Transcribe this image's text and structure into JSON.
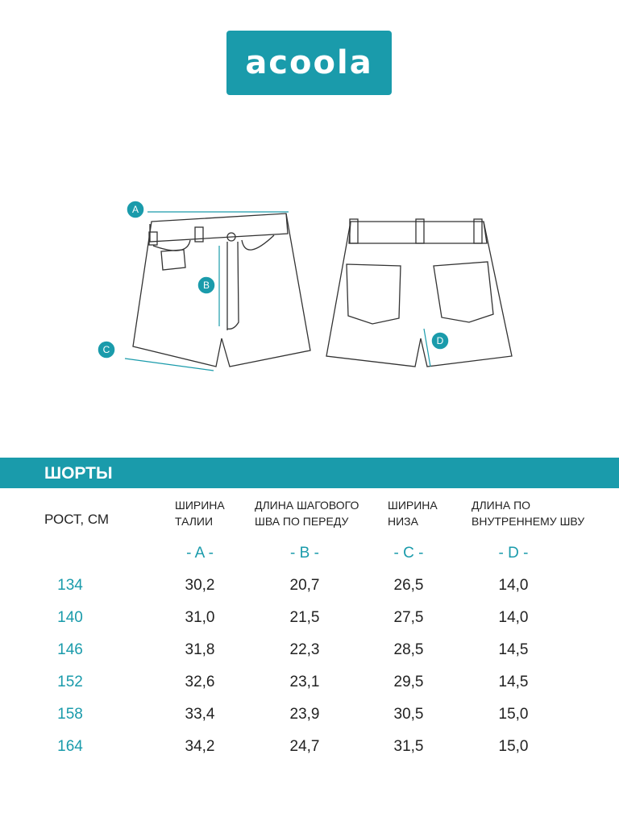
{
  "header": {
    "logo": "acoola"
  },
  "diagram": {
    "markers": [
      "A",
      "B",
      "C",
      "D"
    ]
  },
  "section_title": "ШОРТЫ",
  "table": {
    "columns": [
      [
        "РОСТ, СМ"
      ],
      [
        "ШИРИНА",
        "ТАЛИИ"
      ],
      [
        "ДЛИНА ШАГОВОГО",
        "ШВА ПО ПЕРЕДУ"
      ],
      [
        "ШИРИНА",
        "НИЗА"
      ],
      [
        "ДЛИНА ПО",
        "ВНУТРЕННЕМУ ШВУ"
      ]
    ],
    "letters": [
      "- A -",
      "- B -",
      "- C -",
      "- D -"
    ],
    "rows": [
      [
        "134",
        "30,2",
        "20,7",
        "26,5",
        "14,0"
      ],
      [
        "140",
        "31,0",
        "21,5",
        "27,5",
        "14,0"
      ],
      [
        "146",
        "31,8",
        "22,3",
        "28,5",
        "14,5"
      ],
      [
        "152",
        "32,6",
        "23,1",
        "29,5",
        "14,5"
      ],
      [
        "158",
        "33,4",
        "23,9",
        "30,5",
        "15,0"
      ],
      [
        "164",
        "34,2",
        "24,7",
        "31,5",
        "15,0"
      ]
    ]
  }
}
